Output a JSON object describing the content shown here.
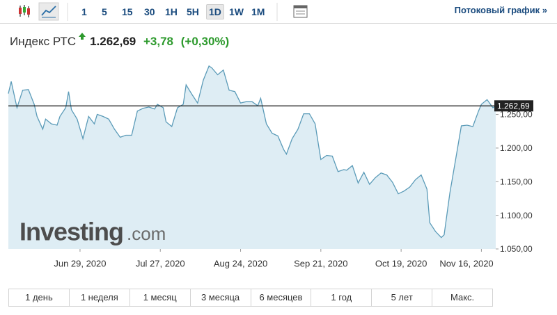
{
  "toolbar": {
    "intervals": [
      "1",
      "5",
      "15",
      "30",
      "1H",
      "5H",
      "1D",
      "1W",
      "1M"
    ],
    "active_interval_index": 6,
    "stream_link": "Потоковый график »"
  },
  "header": {
    "name": "Индекс РТС",
    "price": "1.262,69",
    "change": "+3,78",
    "change_percent": "(+0,30%)"
  },
  "watermark": {
    "brand": "Investing",
    "suffix": ".com"
  },
  "periods": [
    "1 день",
    "1 неделя",
    "1 месяц",
    "3 месяца",
    "6 месяцев",
    "1 год",
    "5 лет",
    "Макс."
  ],
  "chart_data": {
    "type": "area",
    "color": "#5b9bb8",
    "fill": "#deedf4",
    "x": [
      "2020-06-04",
      "2020-06-05",
      "2020-06-07",
      "2020-06-09",
      "2020-06-11",
      "2020-06-13",
      "2020-06-14",
      "2020-06-16",
      "2020-06-17",
      "2020-06-19",
      "2020-06-21",
      "2020-06-22",
      "2020-06-24",
      "2020-06-25",
      "2020-06-26",
      "2020-06-28",
      "2020-06-30",
      "2020-07-02",
      "2020-07-04",
      "2020-07-05",
      "2020-07-07",
      "2020-07-09",
      "2020-07-11",
      "2020-07-13",
      "2020-07-15",
      "2020-07-17",
      "2020-07-19",
      "2020-07-21",
      "2020-07-23",
      "2020-07-25",
      "2020-07-26",
      "2020-07-28",
      "2020-07-29",
      "2020-07-31",
      "2020-08-02",
      "2020-08-04",
      "2020-08-05",
      "2020-08-07",
      "2020-08-09",
      "2020-08-11",
      "2020-08-13",
      "2020-08-14",
      "2020-08-16",
      "2020-08-18",
      "2020-08-20",
      "2020-08-22",
      "2020-08-24",
      "2020-08-26",
      "2020-08-28",
      "2020-08-30",
      "2020-08-31",
      "2020-09-02",
      "2020-09-04",
      "2020-09-06",
      "2020-09-08",
      "2020-09-09",
      "2020-09-11",
      "2020-09-13",
      "2020-09-15",
      "2020-09-17",
      "2020-09-19",
      "2020-09-21",
      "2020-09-23",
      "2020-09-25",
      "2020-09-27",
      "2020-09-29",
      "2020-09-30",
      "2020-10-02",
      "2020-10-04",
      "2020-10-06",
      "2020-10-08",
      "2020-10-10",
      "2020-10-12",
      "2020-10-14",
      "2020-10-16",
      "2020-10-18",
      "2020-10-20",
      "2020-10-22",
      "2020-10-24",
      "2020-10-26",
      "2020-10-28",
      "2020-10-29",
      "2020-10-31",
      "2020-11-02",
      "2020-11-03",
      "2020-11-05",
      "2020-11-07",
      "2020-11-09",
      "2020-11-11",
      "2020-11-13",
      "2020-11-15",
      "2020-11-16",
      "2020-11-18",
      "2020-11-20",
      "2020-11-21"
    ],
    "values": [
      1281,
      1299,
      1260,
      1286,
      1287,
      1265,
      1247,
      1228,
      1243,
      1236,
      1234,
      1247,
      1260,
      1284,
      1257,
      1243,
      1214,
      1247,
      1236,
      1250,
      1247,
      1243,
      1228,
      1216,
      1219,
      1219,
      1255,
      1259,
      1261,
      1258,
      1265,
      1260,
      1239,
      1232,
      1260,
      1265,
      1294,
      1280,
      1267,
      1301,
      1322,
      1319,
      1309,
      1316,
      1286,
      1284,
      1267,
      1269,
      1269,
      1263,
      1274,
      1236,
      1222,
      1218,
      1198,
      1191,
      1214,
      1228,
      1251,
      1251,
      1236,
      1183,
      1189,
      1188,
      1165,
      1168,
      1167,
      1174,
      1148,
      1164,
      1146,
      1156,
      1163,
      1160,
      1149,
      1132,
      1136,
      1142,
      1153,
      1160,
      1139,
      1089,
      1076,
      1067,
      1071,
      1133,
      1183,
      1233,
      1234,
      1232,
      1255,
      1265,
      1272,
      1260,
      1262.69
    ],
    "xlim": [
      "2020-06-04",
      "2020-11-21"
    ],
    "xticks": [
      {
        "value": "2020-06-29",
        "label": "Jun 29, 2020"
      },
      {
        "value": "2020-07-27",
        "label": "Jul 27, 2020"
      },
      {
        "value": "2020-08-24",
        "label": "Aug 24, 2020"
      },
      {
        "value": "2020-09-21",
        "label": "Sep 21, 2020"
      },
      {
        "value": "2020-10-19",
        "label": "Oct 19, 2020"
      },
      {
        "value": "2020-11-16",
        "label": "Nov 16, 2020"
      }
    ],
    "ylim": [
      1050,
      1325
    ],
    "yticks": [
      {
        "value": 1050,
        "label": "1.050,00"
      },
      {
        "value": 1100,
        "label": "1.100,00"
      },
      {
        "value": 1150,
        "label": "1.150,00"
      },
      {
        "value": 1200,
        "label": "1.200,00"
      },
      {
        "value": 1250,
        "label": "1.250,00"
      }
    ],
    "reference_line": {
      "value": 1262.69,
      "label": "1.262,69"
    }
  }
}
